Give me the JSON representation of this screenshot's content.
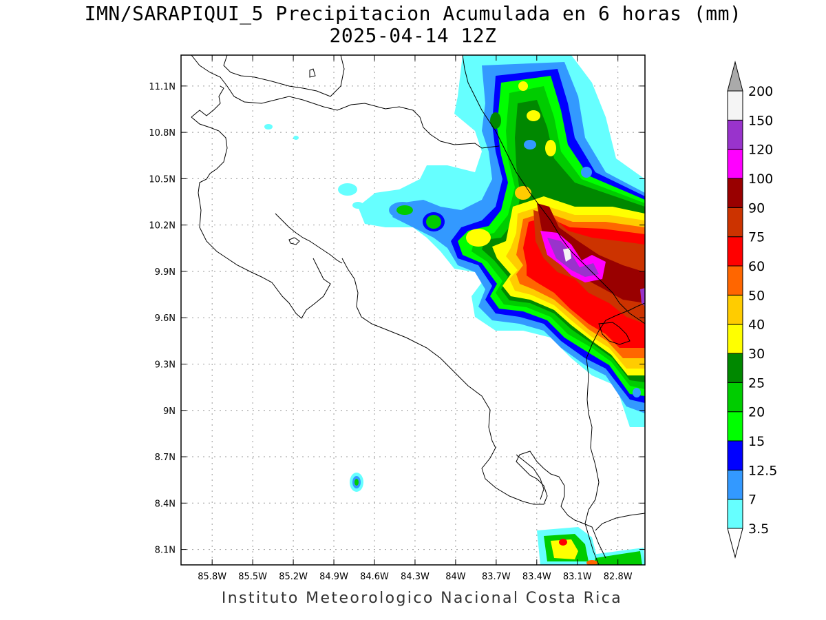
{
  "title": {
    "line1": "IMN/SARAPIQUI_5 Precipitacion Acumulada en 6 horas (mm)",
    "line2": "2025-04-14 12Z"
  },
  "footer": "Instituto Meteorologico Nacional Costa Rica",
  "map": {
    "lon_range": [
      -86.03,
      -82.6
    ],
    "lat_range": [
      8.0,
      11.3
    ],
    "x_ticks": [
      "85.8W",
      "85.5W",
      "85.2W",
      "84.9W",
      "84.6W",
      "84.3W",
      "84W",
      "83.7W",
      "83.4W",
      "83.1W",
      "82.8W"
    ],
    "y_ticks": [
      "11.1N",
      "10.8N",
      "10.5N",
      "10.2N",
      "9.9N",
      "9.6N",
      "9.3N",
      "9N",
      "8.7N",
      "8.4N",
      "8.1N"
    ],
    "grid": true
  },
  "colorbar": {
    "levels": [
      "3.5",
      "7",
      "12.5",
      "15",
      "20",
      "25",
      "30",
      "40",
      "50",
      "60",
      "75",
      "90",
      "100",
      "120",
      "150",
      "200"
    ],
    "colors": [
      "#66ffff",
      "#3399ff",
      "#0000ff",
      "#00ff00",
      "#00cc00",
      "#008800",
      "#ffff00",
      "#ffcc00",
      "#ff6600",
      "#ff0000",
      "#cc3300",
      "#990000",
      "#ff00ff",
      "#9933cc",
      "#f5f5f5",
      "#aaaaaa"
    ]
  }
}
